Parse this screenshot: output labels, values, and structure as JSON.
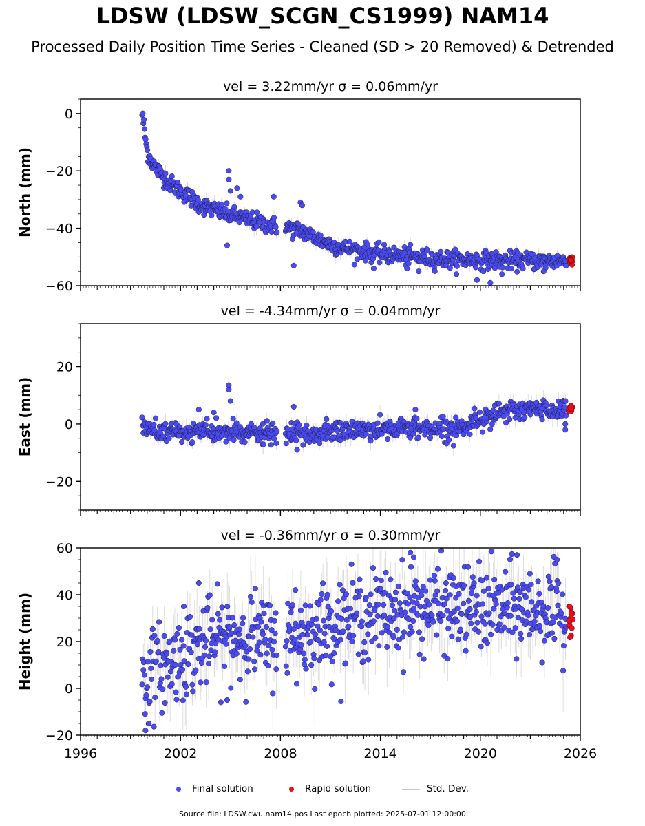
{
  "title": "LDSW (LDSW_SCGN_CS1999) NAM14",
  "subtitle": "Processed Daily Position Time Series - Cleaned (SD > 20 Removed) & Detrended",
  "colors": {
    "final": "#4b4bf5",
    "rapid": "#e8101a",
    "stddev": "#b4b4b4",
    "edge": "#1a1a3a"
  },
  "legend": [
    {
      "label": "Final solution",
      "kind": "final"
    },
    {
      "label": "Rapid solution",
      "kind": "rapid"
    },
    {
      "label": "Std. Dev.",
      "kind": "stddev"
    }
  ],
  "footer": "Source file: LDSW.cwu.nam14.pos  Last epoch plotted: 2025-07-01 12:00:00",
  "chart_data": [
    {
      "type": "scatter",
      "title": "vel = 3.22mm/yr   σ = 0.06mm/yr",
      "ylabel": "North (mm)",
      "xlim": [
        1996,
        2026
      ],
      "ylim": [
        -60,
        5
      ],
      "yticks": [
        -60,
        -40,
        -20,
        0
      ],
      "xticks": [
        1996,
        2002,
        2008,
        2014,
        2020,
        2026
      ],
      "xticklabels_visible": false,
      "series": [
        {
          "name": "Final solution",
          "x": [
            1999.7,
            1999.8,
            1999.9,
            2000.0,
            2000.2,
            2000.5,
            2001.0,
            2001.5,
            2002.0,
            2002.5,
            2003.0,
            2003.5,
            2004.0,
            2004.5,
            2005.0,
            2005.5,
            2006.0,
            2006.5,
            2007.0,
            2007.5,
            2008.5,
            2009.0,
            2009.5,
            2010.0,
            2010.5,
            2011.0,
            2011.5,
            2012.0,
            2012.5,
            2013.0,
            2014.0,
            2015.0,
            2016.0,
            2017.0,
            2018.0,
            2019.0,
            2020.0,
            2021.0,
            2022.0,
            2023.0,
            2024.0,
            2025.0
          ],
          "y": [
            0,
            -4,
            -9,
            -13,
            -16,
            -19,
            -22,
            -25,
            -27,
            -29,
            -31,
            -32.5,
            -33.5,
            -34.5,
            -35.5,
            -36,
            -37,
            -37.5,
            -38.5,
            -39,
            -40,
            -40.5,
            -41.5,
            -43,
            -44.5,
            -45.5,
            -46.5,
            -47,
            -47.5,
            -48,
            -49,
            -49.5,
            -50,
            -50.5,
            -50.8,
            -51,
            -51,
            -51.2,
            -51.3,
            -51.3,
            -51.4,
            -51.4
          ],
          "spread": 1.5
        },
        {
          "name": "Rapid solution",
          "x": [
            2025.2,
            2025.3,
            2025.4,
            2025.5
          ],
          "y": [
            -50.5,
            -51.5,
            -52,
            -51
          ]
        }
      ],
      "outliers": {
        "x": [
          2004.9,
          2004.9,
          2005.0,
          2005.4,
          2005.6,
          2004.8,
          2007.6,
          2008.8,
          2009.2,
          2009.3,
          2013.6,
          2015.6,
          2016.3,
          2019.8,
          2020.6,
          2021.3,
          2023.8
        ],
        "y": [
          -20,
          -23,
          -27,
          -26,
          -29,
          -46,
          -29,
          -53,
          -31,
          -32,
          -54,
          -54,
          -55,
          -58,
          -59,
          -56,
          -55
        ]
      }
    },
    {
      "type": "scatter",
      "title": "vel = -4.34mm/yr   σ = 0.04mm/yr",
      "ylabel": "East (mm)",
      "xlim": [
        1996,
        2026
      ],
      "ylim": [
        -30,
        35
      ],
      "yticks": [
        -20,
        0,
        20
      ],
      "xticks": [
        1996,
        2002,
        2008,
        2014,
        2020,
        2026
      ],
      "xticklabels_visible": false,
      "series": [
        {
          "name": "Final solution",
          "x": [
            1999.7,
            2000.5,
            2001.5,
            2002.5,
            2003.5,
            2004.5,
            2005.5,
            2006.5,
            2007.5,
            2008.5,
            2009.5,
            2010.5,
            2011.5,
            2012.5,
            2013.5,
            2014.5,
            2015.5,
            2016.5,
            2017.5,
            2018.5,
            2019.2,
            2019.6,
            2020.0,
            2020.5,
            2021.0,
            2021.5,
            2022.0,
            2022.5,
            2023.0,
            2023.5,
            2024.0,
            2024.5,
            2025.0
          ],
          "y": [
            -1,
            -2.5,
            -3,
            -3,
            -3,
            -3,
            -3,
            -3.5,
            -3.5,
            -3.5,
            -4,
            -3,
            -2.5,
            -2,
            -2,
            -1.5,
            -1.5,
            -1.5,
            -1.5,
            -1.5,
            -1,
            1,
            2,
            3,
            3.5,
            4,
            4.5,
            5,
            5,
            5,
            5,
            5,
            5
          ],
          "spread": 1.8
        },
        {
          "name": "Rapid solution",
          "x": [
            2025.2,
            2025.3,
            2025.4,
            2025.5
          ],
          "y": [
            5.5,
            6,
            5,
            6.5
          ]
        }
      ],
      "outliers": {
        "x": [
          2004.9,
          2004.9,
          2005.0,
          2003.1,
          2008.8,
          2016.1,
          2025.1,
          2025.1,
          2004.0,
          2009.0
        ],
        "y": [
          13.5,
          12,
          8,
          5,
          6,
          5,
          -2,
          0,
          4,
          -9
        ]
      }
    },
    {
      "type": "scatter",
      "title": "vel = -0.36mm/yr   σ = 0.30mm/yr",
      "ylabel": "Height (mm)",
      "xlim": [
        1996,
        2026
      ],
      "ylim": [
        -20,
        60
      ],
      "yticks": [
        -20,
        0,
        20,
        40,
        60
      ],
      "xticks": [
        1996,
        2002,
        2008,
        2014,
        2020,
        2026
      ],
      "xticklabels_visible": true,
      "series": [
        {
          "name": "Final solution",
          "x": [
            1999.7,
            2000.2,
            2000.7,
            2001.2,
            2001.7,
            2002.2,
            2002.7,
            2003.2,
            2003.7,
            2004.2,
            2004.7,
            2005.2,
            2005.7,
            2006.2,
            2006.7,
            2007.2,
            2007.7,
            2008.5,
            2009.0,
            2009.5,
            2010.0,
            2010.5,
            2011.0,
            2011.5,
            2012.0,
            2013.0,
            2014.0,
            2015.0,
            2016.0,
            2017.0,
            2018.0,
            2019.0,
            2020.0,
            2021.0,
            2022.0,
            2023.0,
            2024.0,
            2025.0
          ],
          "y": [
            2,
            6,
            9,
            10,
            12,
            14,
            16,
            18,
            20,
            21,
            21,
            22,
            22,
            23,
            22,
            20,
            22,
            22,
            22,
            23,
            25,
            26,
            27,
            28,
            29,
            31,
            32,
            33,
            34,
            34,
            34,
            34,
            34,
            34,
            34,
            34,
            33,
            30
          ],
          "spread": 9
        },
        {
          "name": "Rapid solution",
          "x": [
            2025.2,
            2025.3,
            2025.4,
            2025.5
          ],
          "y": [
            25,
            30,
            27,
            34
          ]
        }
      ],
      "outliers": {
        "x": [
          2003.1,
          2004.8,
          2002.2,
          1999.9,
          2000.1,
          2015.8,
          2022.2,
          2024.6,
          2016.0,
          2008.9
        ],
        "y": [
          45,
          -5,
          35,
          -18,
          -15,
          58,
          57,
          55,
          56,
          42
        ]
      }
    }
  ]
}
